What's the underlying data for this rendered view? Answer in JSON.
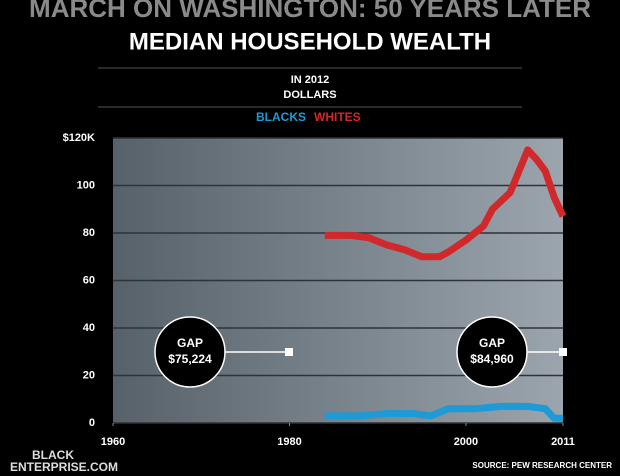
{
  "chart_data": {
    "type": "line",
    "supertitle": "MARCH ON WASHINGTON: 50 YEARS LATER",
    "title": "MEDIAN HOUSEHOLD WEALTH",
    "subtitle": [
      "IN 2012",
      "DOLLARS"
    ],
    "xlim": [
      1960,
      2011
    ],
    "xticks": [
      1960,
      1980,
      2000,
      2011
    ],
    "ylim": [
      0,
      120
    ],
    "yticks": [
      0,
      20,
      40,
      60,
      80,
      100,
      {
        "value": 120,
        "label": "$120K"
      }
    ],
    "grid": true,
    "series": [
      {
        "name": "BLACKS",
        "color": "#1e9ad6",
        "x": [
          1984,
          1988,
          1991,
          1994,
          1996,
          1998,
          2001,
          2004,
          2007,
          2009,
          2010,
          2011
        ],
        "values": [
          3,
          3,
          4,
          4,
          3,
          6,
          6,
          7,
          7,
          6,
          2,
          2
        ]
      },
      {
        "name": "WHITES",
        "color": "#d0282b",
        "x": [
          1984,
          1987,
          1989,
          1991,
          1993,
          1995,
          1997,
          1998,
          2000,
          2002,
          2003,
          2005,
          2007,
          2008,
          2009,
          2010,
          2011
        ],
        "values": [
          79,
          79,
          78,
          75,
          73,
          70,
          70,
          72,
          77,
          83,
          90,
          97,
          115,
          111,
          106,
          95,
          87
        ]
      }
    ],
    "annotations": [
      [
        "GAP",
        "$75,224"
      ],
      [
        "GAP",
        "$84,960"
      ]
    ],
    "logo": [
      "BLACK",
      "ENTERPRISE.COM"
    ],
    "source": "SOURCE: PEW RESEARCH CENTER"
  }
}
